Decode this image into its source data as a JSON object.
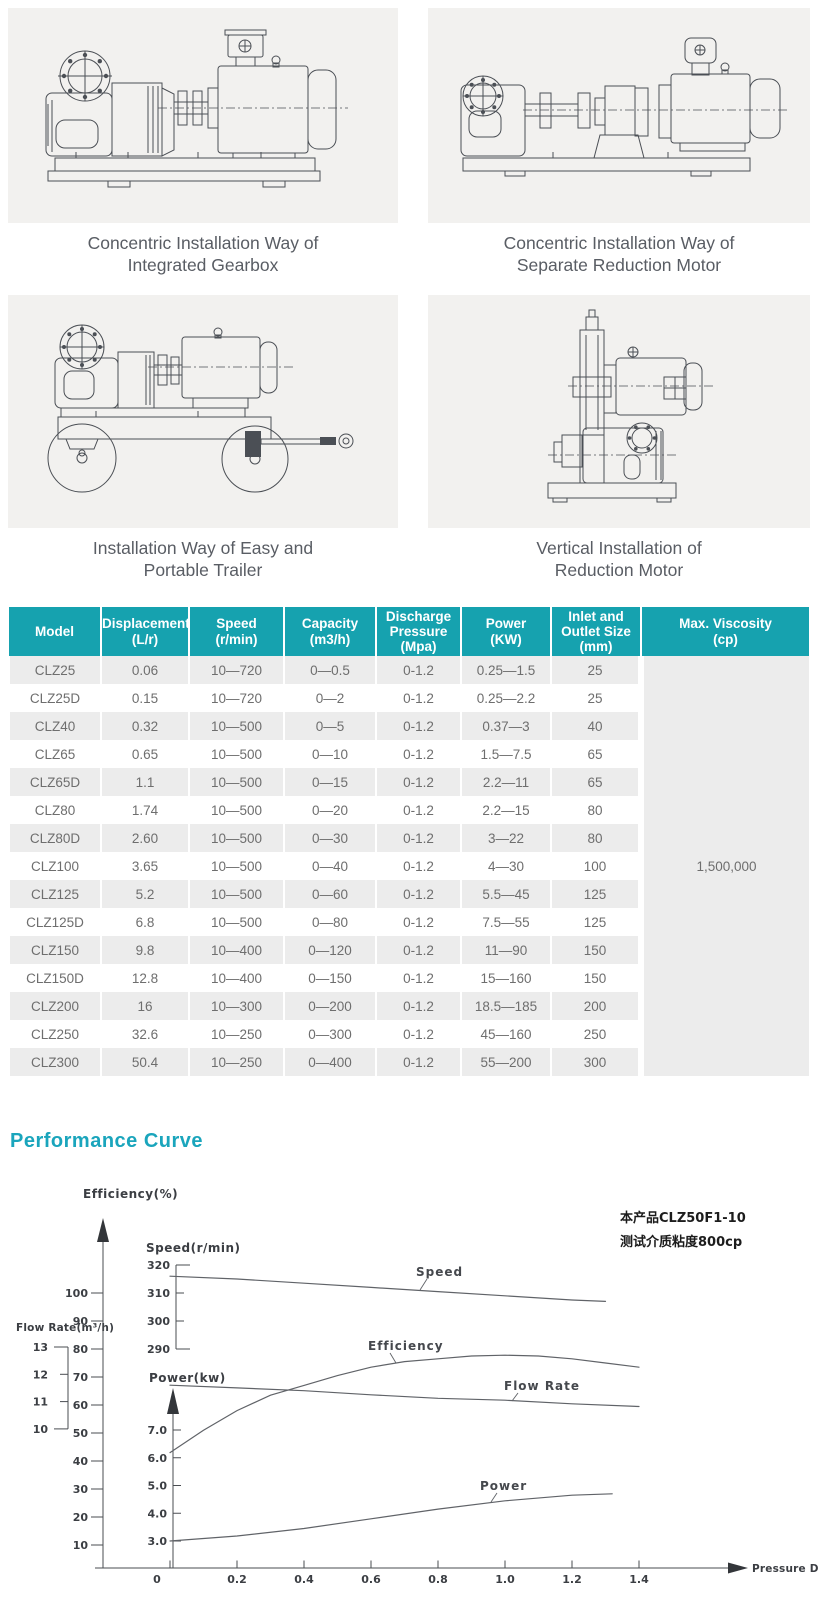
{
  "installation_figures": [
    {
      "caption_line1": "Concentric Installation Way of",
      "caption_line2": "Integrated Gearbox"
    },
    {
      "caption_line1": "Concentric Installation Way of",
      "caption_line2": "Separate Reduction Motor"
    },
    {
      "caption_line1": "Installation Way of Easy and",
      "caption_line2": "Portable Trailer"
    },
    {
      "caption_line1": "Vertical Installation of",
      "caption_line2": "Reduction Motor"
    }
  ],
  "spec_table": {
    "header_color": "#16a2af",
    "columns": [
      "Model",
      "Displacement\n(L/r)",
      "Speed\n(r/min)",
      "Capacity\n(m3/h)",
      "Discharge\nPressure\n(Mpa)",
      "Power\n(KW)",
      "Inlet and\nOutlet Size\n(mm)",
      "Max. Viscosity\n(cp)"
    ],
    "rows": [
      {
        "model": "CLZ25",
        "displacement": "0.06",
        "speed": "10—720",
        "capacity": "0—0.5",
        "discharge_pressure": "0-1.2",
        "power": "0.25—1.5",
        "inlet_outlet_size": "25"
      },
      {
        "model": "CLZ25D",
        "displacement": "0.15",
        "speed": "10—720",
        "capacity": "0—2",
        "discharge_pressure": "0-1.2",
        "power": "0.25—2.2",
        "inlet_outlet_size": "25"
      },
      {
        "model": "CLZ40",
        "displacement": "0.32",
        "speed": "10—500",
        "capacity": "0—5",
        "discharge_pressure": "0-1.2",
        "power": "0.37—3",
        "inlet_outlet_size": "40"
      },
      {
        "model": "CLZ65",
        "displacement": "0.65",
        "speed": "10—500",
        "capacity": "0—10",
        "discharge_pressure": "0-1.2",
        "power": "1.5—7.5",
        "inlet_outlet_size": "65"
      },
      {
        "model": "CLZ65D",
        "displacement": "1.1",
        "speed": "10—500",
        "capacity": "0—15",
        "discharge_pressure": "0-1.2",
        "power": "2.2—11",
        "inlet_outlet_size": "65"
      },
      {
        "model": "CLZ80",
        "displacement": "1.74",
        "speed": "10—500",
        "capacity": "0—20",
        "discharge_pressure": "0-1.2",
        "power": "2.2—15",
        "inlet_outlet_size": "80"
      },
      {
        "model": "CLZ80D",
        "displacement": "2.60",
        "speed": "10—500",
        "capacity": "0—30",
        "discharge_pressure": "0-1.2",
        "power": "3—22",
        "inlet_outlet_size": "80"
      },
      {
        "model": "CLZ100",
        "displacement": "3.65",
        "speed": "10—500",
        "capacity": "0—40",
        "discharge_pressure": "0-1.2",
        "power": "4—30",
        "inlet_outlet_size": "100"
      },
      {
        "model": "CLZ125",
        "displacement": "5.2",
        "speed": "10—500",
        "capacity": "0—60",
        "discharge_pressure": "0-1.2",
        "power": "5.5—45",
        "inlet_outlet_size": "125"
      },
      {
        "model": "CLZ125D",
        "displacement": "6.8",
        "speed": "10—500",
        "capacity": "0—80",
        "discharge_pressure": "0-1.2",
        "power": "7.5—55",
        "inlet_outlet_size": "125"
      },
      {
        "model": "CLZ150",
        "displacement": "9.8",
        "speed": "10—400",
        "capacity": "0—120",
        "discharge_pressure": "0-1.2",
        "power": "11—90",
        "inlet_outlet_size": "150"
      },
      {
        "model": "CLZ150D",
        "displacement": "12.8",
        "speed": "10—400",
        "capacity": "0—150",
        "discharge_pressure": "0-1.2",
        "power": "15—160",
        "inlet_outlet_size": "150"
      },
      {
        "model": "CLZ200",
        "displacement": "16",
        "speed": "10—300",
        "capacity": "0—200",
        "discharge_pressure": "0-1.2",
        "power": "18.5—185",
        "inlet_outlet_size": "200"
      },
      {
        "model": "CLZ250",
        "displacement": "32.6",
        "speed": "10—250",
        "capacity": "0—300",
        "discharge_pressure": "0-1.2",
        "power": "45—160",
        "inlet_outlet_size": "250"
      },
      {
        "model": "CLZ300",
        "displacement": "50.4",
        "speed": "10—250",
        "capacity": "0—400",
        "discharge_pressure": "0-1.2",
        "power": "55—200",
        "inlet_outlet_size": "300"
      }
    ],
    "max_viscosity": "1,500,000"
  },
  "performance": {
    "title": "Performance Curve",
    "title_color": "#1aa5bc"
  },
  "chart_data": {
    "type": "line",
    "x_axis": {
      "label": "Pressure Differential(Mpa)",
      "ticks": [
        "0",
        "0.2",
        "0.4",
        "0.6",
        "0.8",
        "1.0",
        "1.2",
        "1.4"
      ],
      "range": [
        0,
        1.5
      ]
    },
    "axes": [
      {
        "id": "efficiency",
        "title": "Efficiency(%)",
        "ticks": [
          10,
          20,
          30,
          40,
          50,
          60,
          70,
          80,
          90,
          100
        ]
      },
      {
        "id": "speed",
        "title": "Speed(r/min)",
        "ticks": [
          290,
          300,
          310,
          320
        ]
      },
      {
        "id": "flow",
        "title": "Flow Rate(m³/h)",
        "ticks": [
          10,
          11,
          12,
          13
        ]
      },
      {
        "id": "power",
        "title": "Power(kw)",
        "ticks": [
          "3.0",
          "4.0",
          "5.0",
          "6.0",
          "7.0"
        ]
      }
    ],
    "series": [
      {
        "name": "Speed",
        "scale": "speed",
        "points": [
          [
            0,
            316
          ],
          [
            0.2,
            315
          ],
          [
            0.4,
            313.5
          ],
          [
            0.6,
            312
          ],
          [
            0.8,
            310.5
          ],
          [
            1.0,
            309
          ],
          [
            1.2,
            307.5
          ],
          [
            1.3,
            307
          ]
        ]
      },
      {
        "name": "Efficiency",
        "scale": "efficiency",
        "points": [
          [
            0,
            43
          ],
          [
            0.1,
            51
          ],
          [
            0.2,
            58
          ],
          [
            0.3,
            63.5
          ],
          [
            0.4,
            67
          ],
          [
            0.5,
            70.5
          ],
          [
            0.6,
            73.5
          ],
          [
            0.7,
            75.5
          ],
          [
            0.8,
            76.5
          ],
          [
            0.9,
            77.5
          ],
          [
            1.0,
            77.8
          ],
          [
            1.1,
            77.5
          ],
          [
            1.2,
            76.5
          ],
          [
            1.3,
            75
          ],
          [
            1.4,
            73.5
          ]
        ]
      },
      {
        "name": "Flow Rate",
        "scale": "flow",
        "points": [
          [
            0,
            11.6
          ],
          [
            0.2,
            11.5
          ],
          [
            0.4,
            11.4
          ],
          [
            0.6,
            11.25
          ],
          [
            0.8,
            11.12
          ],
          [
            1.0,
            11.05
          ],
          [
            1.2,
            10.92
          ],
          [
            1.4,
            10.82
          ]
        ]
      },
      {
        "name": "Power",
        "scale": "power",
        "points": [
          [
            0,
            3.0
          ],
          [
            0.2,
            3.18
          ],
          [
            0.4,
            3.45
          ],
          [
            0.6,
            3.8
          ],
          [
            0.8,
            4.15
          ],
          [
            1.0,
            4.45
          ],
          [
            1.2,
            4.65
          ],
          [
            1.32,
            4.7
          ]
        ]
      }
    ],
    "annotations": [
      "本产品CLZ50F1-10",
      "测试介质粘度800cp"
    ]
  }
}
